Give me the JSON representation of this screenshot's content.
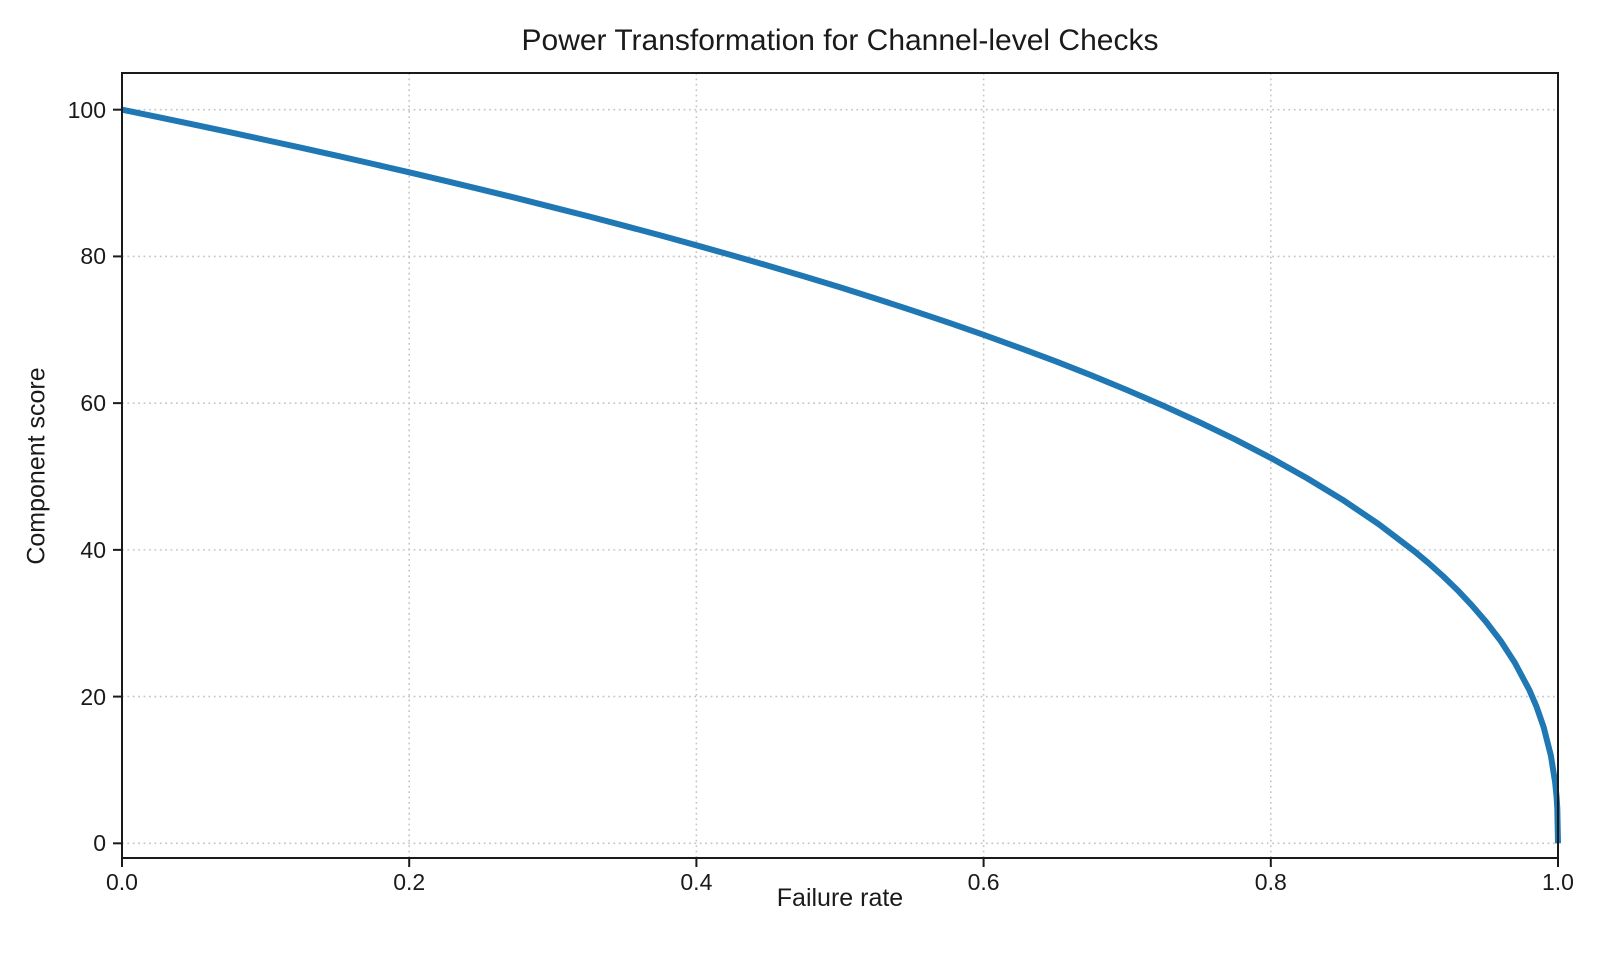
{
  "page": {
    "background_color": "#ffffff",
    "text_color": "#1a1a1a"
  },
  "chart_data": {
    "type": "line",
    "title": "Power Transformation for Channel-level Checks",
    "xlabel": "Failure rate",
    "ylabel": "Component score",
    "xlim": [
      0.0,
      1.0
    ],
    "ylim": [
      -2,
      105
    ],
    "xticks": [
      0.0,
      0.2,
      0.4,
      0.6,
      0.8,
      1.0
    ],
    "xtick_labels": [
      "0.0",
      "0.2",
      "0.4",
      "0.6",
      "0.8",
      "1.0"
    ],
    "yticks": [
      0,
      20,
      40,
      60,
      80,
      100
    ],
    "ytick_labels": [
      "0",
      "20",
      "40",
      "60",
      "80",
      "100"
    ],
    "grid": "dotted",
    "grid_color": "#c6c6c6",
    "spine_color": "#1a1a1a",
    "tick_color": "#1a1a1a",
    "line_color": "#1f77b4",
    "line_width": 6,
    "legend": "none",
    "series": [
      {
        "name": "component-score-curve",
        "x": [
          0.0,
          0.025,
          0.05,
          0.075,
          0.1,
          0.125,
          0.15,
          0.175,
          0.2,
          0.225,
          0.25,
          0.275,
          0.3,
          0.325,
          0.35,
          0.375,
          0.4,
          0.425,
          0.45,
          0.475,
          0.5,
          0.525,
          0.55,
          0.575,
          0.6,
          0.625,
          0.65,
          0.675,
          0.7,
          0.725,
          0.75,
          0.775,
          0.8,
          0.825,
          0.85,
          0.875,
          0.9,
          0.91,
          0.92,
          0.93,
          0.94,
          0.95,
          0.96,
          0.97,
          0.98,
          0.985,
          0.99,
          0.995,
          0.998,
          0.999,
          0.9995,
          1.0
        ],
        "y": [
          100.0,
          98.99,
          97.97,
          96.93,
          95.87,
          94.8,
          93.71,
          92.59,
          91.46,
          90.31,
          89.13,
          87.93,
          86.7,
          85.45,
          84.17,
          82.86,
          81.52,
          80.14,
          78.73,
          77.28,
          75.79,
          74.25,
          72.66,
          71.02,
          69.31,
          67.55,
          65.71,
          63.79,
          61.78,
          59.67,
          57.43,
          55.07,
          52.53,
          49.8,
          46.82,
          43.53,
          39.81,
          38.17,
          36.41,
          34.52,
          32.45,
          30.17,
          27.6,
          24.6,
          20.91,
          18.64,
          15.85,
          12.01,
          8.33,
          6.31,
          4.78,
          0.0
        ]
      }
    ]
  }
}
